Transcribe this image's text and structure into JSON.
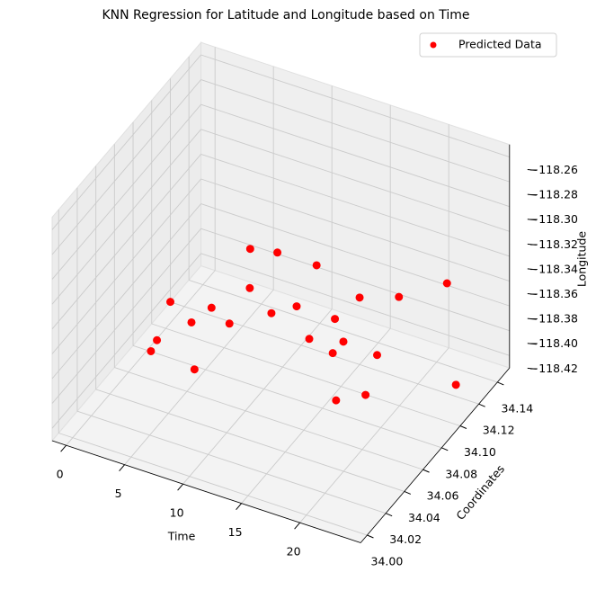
{
  "chart_data": {
    "type": "scatter3d",
    "title": "KNN Regression for Latitude and Longitude based on Time",
    "x_label": "Time",
    "y_label": "Coordinates",
    "z_label": "Longitude",
    "xlim": [
      -1.2,
      25.2
    ],
    "ylim": [
      33.993,
      34.153
    ],
    "zlim": [
      -118.43,
      -118.25
    ],
    "xticks": [
      0,
      5,
      10,
      15,
      20
    ],
    "yticks": [
      {
        "value": 34.0,
        "label": "34.00"
      },
      34.02,
      34.04,
      34.06,
      34.08,
      {
        "value": 34.1,
        "label": "34.10"
      },
      34.12,
      34.14
    ],
    "zticks": [
      {
        "value": -118.42,
        "label": "−118.42"
      },
      {
        "value": -118.4,
        "label": "−118.40"
      },
      {
        "value": -118.38,
        "label": "−118.38"
      },
      {
        "value": -118.36,
        "label": "−118.36"
      },
      {
        "value": -118.34,
        "label": "−118.34"
      },
      {
        "value": -118.32,
        "label": "−118.32"
      },
      {
        "value": -118.3,
        "label": "−118.30"
      },
      {
        "value": -118.28,
        "label": "−118.28"
      },
      {
        "value": -118.26,
        "label": "−118.26"
      }
    ],
    "grid": true,
    "legend": "upper right",
    "series": [
      {
        "name": "Predicted Data",
        "color": "#ff0000",
        "x": [
          0,
          1,
          2,
          3,
          4,
          5,
          6,
          7,
          8,
          9,
          10,
          11,
          12,
          13,
          14,
          15,
          16,
          17,
          18,
          19,
          20,
          21,
          22,
          23
        ],
        "y": [
          34.105,
          34.078,
          34.059,
          34.09,
          34.099,
          34.128,
          34.115,
          34.043,
          34.068,
          34.107,
          34.088,
          34.124,
          34.09,
          34.091,
          34.106,
          34.12,
          34.09,
          34.066,
          34.057,
          34.112,
          34.076,
          34.051,
          34.126,
          34.123
        ],
        "z": [
          -118.413,
          -118.417,
          -118.406,
          -118.407,
          -118.4,
          -118.375,
          -118.392,
          -118.391,
          -118.373,
          -118.347,
          -118.376,
          -118.366,
          -118.366,
          -118.39,
          -118.384,
          -118.376,
          -118.382,
          -118.367,
          -118.394,
          -118.356,
          -118.368,
          -118.375,
          -118.348,
          -118.424
        ]
      }
    ]
  }
}
